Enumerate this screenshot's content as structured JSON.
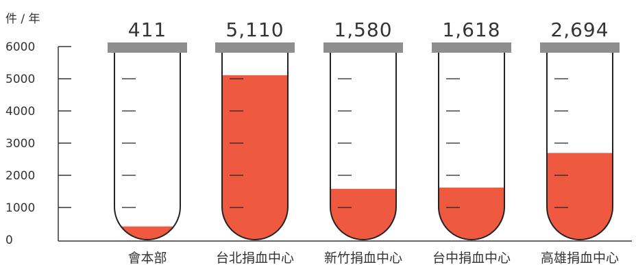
{
  "chart_data": {
    "type": "bar",
    "title": "",
    "ylabel": "件 / 年",
    "xlabel": "",
    "ylim": [
      0,
      6000
    ],
    "yticks": [
      0,
      1000,
      2000,
      3000,
      4000,
      5000,
      6000
    ],
    "categories": [
      "會本部",
      "台北捐血中心",
      "新竹捐血中心",
      "台中捐血中心",
      "高雄捐血中心"
    ],
    "values": [
      411,
      5110,
      1580,
      1618,
      2694
    ],
    "value_labels": [
      "411",
      "5,110",
      "1,580",
      "1,618",
      "2,694"
    ],
    "style": "test-tube bars",
    "grid": false,
    "legend": "none"
  },
  "colors": {
    "fill": "#ee5940",
    "tube_outline": "#222222",
    "cap": "#8e8e8e",
    "axis": "#333333",
    "text": "#333333"
  }
}
